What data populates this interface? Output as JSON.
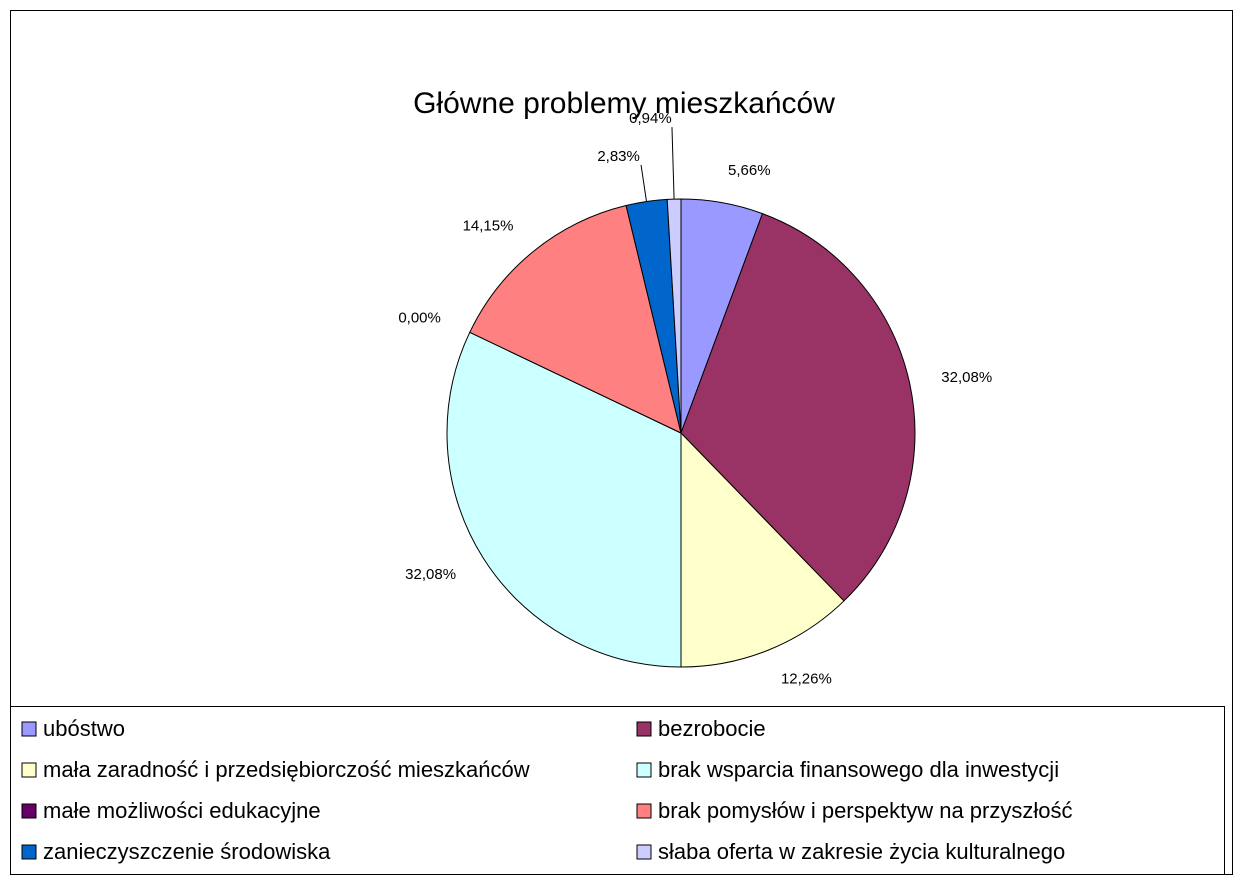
{
  "chart_data": {
    "type": "pie",
    "title": "Główne problemy mieszkańców",
    "categories": [
      "ubóstwo",
      "bezrobocie",
      "mała zaradność i przedsiębiorczość mieszkańców",
      "brak wsparcia finansowego dla inwestycji",
      "małe możliwości edukacyjne",
      "brak pomysłów i perspektyw na przyszłość",
      "zanieczyszczenie środowiska",
      "słaba oferta w zakresie życia kulturalnego"
    ],
    "values": [
      5.66,
      32.08,
      12.26,
      32.08,
      0.0,
      14.15,
      2.83,
      0.94
    ],
    "value_labels": [
      "5,66%",
      "32,08%",
      "12,26%",
      "32,08%",
      "0,00%",
      "14,15%",
      "2,83%",
      "0,94%"
    ],
    "colors": [
      "#9999ff",
      "#993366",
      "#ffffcc",
      "#ccffff",
      "#660066",
      "#ff8080",
      "#0066cc",
      "#ccccff"
    ],
    "legend": "bottom"
  }
}
